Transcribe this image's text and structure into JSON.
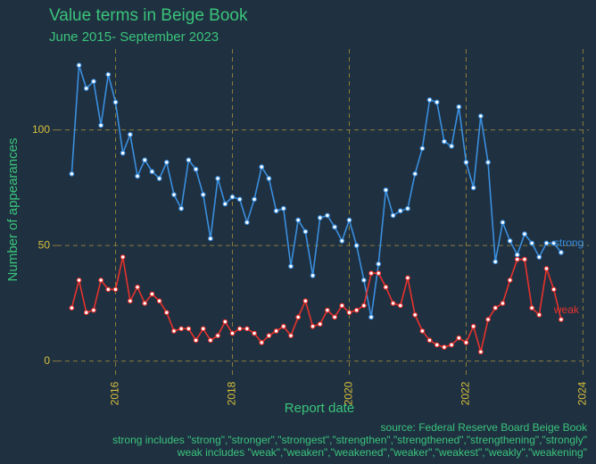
{
  "chart_data": {
    "type": "line",
    "title": "Value terms in Beige Book",
    "subtitle": "June 2015- September 2023",
    "x_label": "Report date",
    "y_label": "Number of appearances",
    "annotations": [
      "source: Federal Reserve Board Beige Book",
      "strong includes \"strong\",\"stronger\",\"strongest\",\"strengthen\",\"strengthened\",\"strengthening\",\"strongly\"",
      "weak includes  \"weak\",\"weaken\",\"weakened\",\"weaker\",\"weakest\",\"weakly\",\"weakening\""
    ],
    "x": [
      2015.25,
      2015.375,
      2015.5,
      2015.625,
      2015.75,
      2015.875,
      2016,
      2016.125,
      2016.25,
      2016.375,
      2016.5,
      2016.625,
      2016.75,
      2016.875,
      2017,
      2017.125,
      2017.25,
      2017.375,
      2017.5,
      2017.625,
      2017.75,
      2017.875,
      2018,
      2018.125,
      2018.25,
      2018.375,
      2018.5,
      2018.625,
      2018.75,
      2018.875,
      2019,
      2019.125,
      2019.25,
      2019.375,
      2019.5,
      2019.625,
      2019.75,
      2019.875,
      2020,
      2020.125,
      2020.25,
      2020.375,
      2020.5,
      2020.625,
      2020.75,
      2020.875,
      2021,
      2021.125,
      2021.25,
      2021.375,
      2021.5,
      2021.625,
      2021.75,
      2021.875,
      2022,
      2022.125,
      2022.25,
      2022.375,
      2022.5,
      2022.625,
      2022.75,
      2022.875,
      2023,
      2023.125,
      2023.25,
      2023.375,
      2023.5,
      2023.625
    ],
    "series": [
      {
        "name": "strong",
        "color": "#3a8fde",
        "values": [
          81,
          128,
          118,
          121,
          102,
          124,
          112,
          90,
          98,
          80,
          87,
          82,
          79,
          86,
          72,
          66,
          87,
          83,
          72,
          53,
          79,
          68,
          71,
          70,
          60,
          70,
          84,
          79,
          65,
          66,
          41,
          61,
          56,
          37,
          62,
          63,
          58,
          52,
          61,
          50,
          35,
          19,
          42,
          74,
          63,
          65,
          66,
          81,
          92,
          113,
          112,
          95,
          93,
          110,
          86,
          75,
          106,
          86,
          43,
          60,
          52,
          46,
          55,
          51,
          45,
          51,
          51,
          47
        ]
      },
      {
        "name": "weak",
        "color": "#e8322c",
        "values": [
          23,
          35,
          21,
          22,
          35,
          31,
          31,
          45,
          26,
          32,
          25,
          29,
          26,
          21,
          13,
          14,
          14,
          9,
          14,
          9,
          11,
          17,
          12,
          14,
          14,
          12,
          8,
          11,
          13,
          15,
          11,
          19,
          26,
          15,
          16,
          22,
          19,
          24,
          21,
          22,
          24,
          38,
          38,
          32,
          25,
          24,
          36,
          20,
          13,
          9,
          7,
          6,
          7,
          10,
          8,
          15,
          4,
          18,
          23,
          25,
          35,
          44,
          44,
          23,
          20,
          40,
          31,
          18
        ]
      }
    ],
    "xlim": [
      2015,
      2024.1
    ],
    "xticks": [
      2016,
      2018,
      2020,
      2022,
      2024
    ],
    "ylim": [
      -4,
      135
    ],
    "yticks": [
      0,
      50,
      100
    ],
    "grid": true
  }
}
